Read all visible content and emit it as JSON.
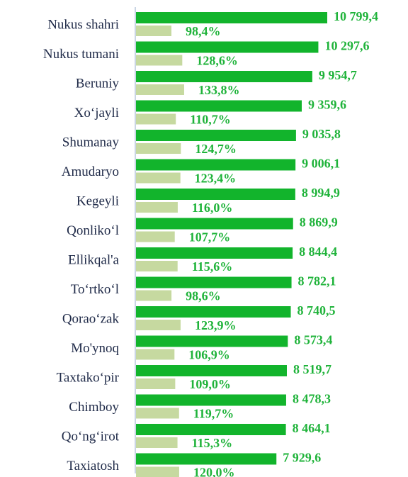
{
  "chart_data": {
    "type": "bar",
    "orientation": "horizontal",
    "categories": [
      "Nukus shahri",
      "Nukus tumani",
      "Beruniy",
      "Xo‘jayli",
      "Shumanay",
      "Amudaryo",
      "Kegeyli",
      "Qonliko‘l",
      "Ellikqal'a",
      "To‘rtko‘l",
      "Qorao‘zak",
      "Mo'ynoq",
      "Taxtako‘pir",
      "Chimboy",
      "Qo‘ng‘irot",
      "Taxiatosh"
    ],
    "series": [
      {
        "color": "#12b42c",
        "values": [
          10799.4,
          10297.6,
          9954.7,
          9359.6,
          9035.8,
          9006.1,
          8994.9,
          8869.9,
          8844.4,
          8782.1,
          8740.5,
          8573.4,
          8519.7,
          8478.3,
          8464.1,
          7929.6
        ],
        "value_labels": [
          "10 799,4",
          "10 297,6",
          "9 954,7",
          "9 359,6",
          "9 035,8",
          "9 006,1",
          "8 994,9",
          "8 869,9",
          "8 844,4",
          "8 782,1",
          "8 740,5",
          "8 573,4",
          "8 519,7",
          "8 478,3",
          "8 464,1",
          "7 929,6"
        ]
      },
      {
        "color": "#c6d9a0",
        "values": [
          98.4,
          128.6,
          133.8,
          110.7,
          124.7,
          123.4,
          116.0,
          107.7,
          115.6,
          98.6,
          123.9,
          106.9,
          109.0,
          119.7,
          115.3,
          120.0
        ],
        "value_labels": [
          "98,4%",
          "128,6%",
          "133,8%",
          "110,7%",
          "124,7%",
          "123,4%",
          "116,0%",
          "107,7%",
          "115,6%",
          "98,6%",
          "123,9%",
          "106,9%",
          "109,0%",
          "119,7%",
          "115,3%",
          "120,0%"
        ]
      }
    ]
  }
}
